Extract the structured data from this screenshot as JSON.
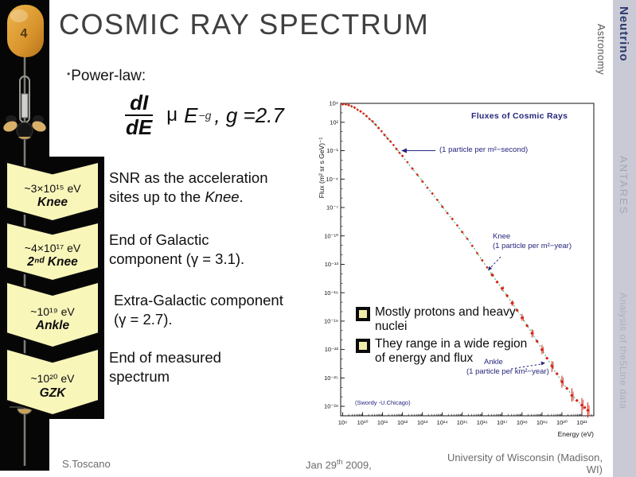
{
  "slide": {
    "number": "4",
    "title": "COSMIC RAY SPECTRUM",
    "power_law_label": "Power-law:",
    "equation": {
      "numerator": "dI",
      "denominator": "dE",
      "proportional": "μ",
      "base": "E",
      "exponent": "−g",
      "tail": ",  g =2.7"
    }
  },
  "entries": [
    {
      "energy": "~3×10¹⁵ eV",
      "name": "Knee",
      "desc_pre": "SNR as the acceleration sites up to the ",
      "desc_italic": "Knee",
      "desc_post": "."
    },
    {
      "energy": "~4×10¹⁷ eV",
      "name": "2ⁿᵈ Knee",
      "desc_pre": "End of Galactic component (γ = 3.1).",
      "desc_italic": "",
      "desc_post": ""
    },
    {
      "energy": "~10¹⁹ eV",
      "name": "Ankle",
      "desc_pre": "Extra-Galactic component (γ = 2.7).",
      "desc_italic": "",
      "desc_post": ""
    },
    {
      "energy": "~10²⁰ eV",
      "name": "GZK",
      "desc_pre": "End of measured spectrum",
      "desc_italic": "",
      "desc_post": ""
    }
  ],
  "overlay": {
    "bullet1": "Mostly protons and heavy nuclei",
    "bullet2": "They range in a wide region of energy and flux"
  },
  "chart_data": {
    "type": "scatter",
    "title": "Fluxes of Cosmic Rays",
    "xlabel": "Energy (eV)",
    "ylabel": "Flux (m² sr s GeV)⁻¹",
    "x_log_range": [
      8.9,
      21.6
    ],
    "y_log_range": [
      -29,
      4
    ],
    "x_ticks": [
      "10⁹",
      "10¹⁰",
      "10¹¹",
      "10¹²",
      "10¹³",
      "10¹⁴",
      "10¹⁵",
      "10¹⁶",
      "10¹⁷",
      "10¹⁸",
      "10¹⁹",
      "10²⁰",
      "10²¹"
    ],
    "x_tick_logs": [
      9,
      10,
      11,
      12,
      13,
      14,
      15,
      16,
      17,
      18,
      19,
      20,
      21
    ],
    "y_ticks": [
      "10⁴",
      "10²",
      "10⁻¹",
      "10⁻⁴",
      "10⁻⁷",
      "10⁻¹⁰",
      "10⁻¹³",
      "10⁻¹⁶",
      "10⁻¹⁹",
      "10⁻²²",
      "10⁻²⁵",
      "10⁻²⁸"
    ],
    "y_tick_logs": [
      4,
      2,
      -1,
      -4,
      -7,
      -10,
      -13,
      -16,
      -19,
      -22,
      -25,
      -28
    ],
    "points": [
      [
        9.0,
        3.9
      ],
      [
        9.3,
        3.82
      ],
      [
        9.6,
        3.55
      ],
      [
        9.9,
        3.15
      ],
      [
        10.2,
        2.65
      ],
      [
        10.5,
        2.05
      ],
      [
        10.8,
        1.4
      ],
      [
        11.1,
        0.7
      ],
      [
        11.4,
        -0.05
      ],
      [
        11.7,
        -0.8
      ],
      [
        12.0,
        -1.6
      ],
      [
        12.5,
        -2.9
      ],
      [
        13.0,
        -4.2
      ],
      [
        13.5,
        -5.55
      ],
      [
        14.0,
        -6.9
      ],
      [
        14.5,
        -8.25
      ],
      [
        15.0,
        -9.6
      ],
      [
        15.5,
        -11.0
      ],
      [
        16.0,
        -12.6
      ],
      [
        16.5,
        -14.1
      ],
      [
        17.0,
        -15.6
      ],
      [
        17.5,
        -17.1
      ],
      [
        18.0,
        -18.6
      ],
      [
        18.5,
        -20.3
      ],
      [
        19.0,
        -22.0
      ],
      [
        19.5,
        -23.8
      ],
      [
        20.0,
        -25.4
      ],
      [
        20.5,
        -26.8
      ],
      [
        21.0,
        -27.9
      ],
      [
        21.3,
        -28.4
      ]
    ],
    "annotations": {
      "title": "Fluxes of Cosmic Rays",
      "per_second": "(1 particle per m²−second)",
      "knee_label": "Knee",
      "knee_sub": "(1 particle per m²−year)",
      "ankle_label": "Ankle",
      "ankle_sub": "(1 particle per km²−year)",
      "credit": "(Swordy -U.Chicago)"
    },
    "colors": {
      "data_red": "#d42318",
      "trend_green": "#3fa35f",
      "annotation_navy": "#26267d",
      "axis_black": "#111111"
    },
    "legend_position": "none",
    "grid": false
  },
  "sidebar_right": {
    "astronomy": "Astronomy",
    "neutrino": "Neutrino",
    "antares": "ANTARES",
    "analysis": "Analysis of the5Line data"
  },
  "footer": {
    "author": "S.Toscano",
    "date_pre": "Jan 29",
    "date_sup": "th",
    "date_post": " 2009,",
    "venue_line1": "University of Wisconsin  (Madison,",
    "venue_line2": "WI)"
  },
  "theme": {
    "banner_yellow": "#f9f6ba",
    "strip_black": "#060606",
    "sidebar_gray": "#c9cad5",
    "buoy_orange": "#d9942c",
    "title_gray": "#3f3f3f"
  }
}
